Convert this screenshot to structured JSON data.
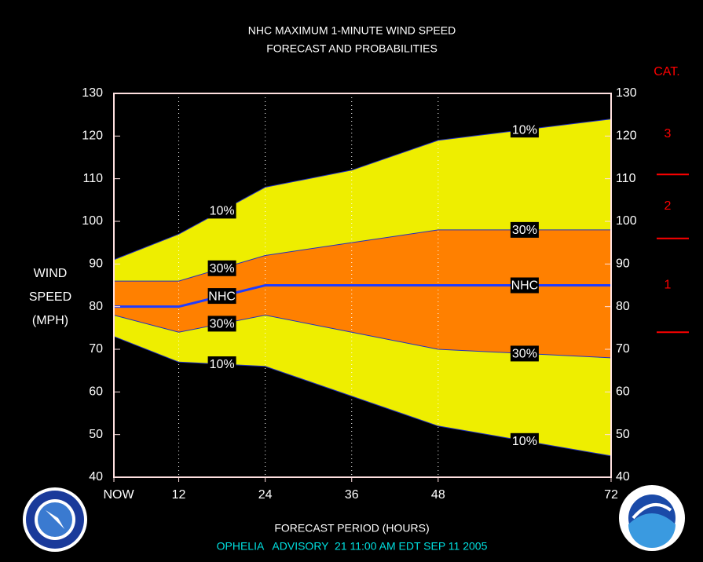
{
  "chart_data": {
    "type": "probability-band",
    "title": [
      "NHC MAXIMUM 1-MINUTE WIND SPEED",
      "FORECAST AND PROBABILITIES"
    ],
    "y_label": [
      "WIND",
      "SPEED",
      "(MPH)"
    ],
    "x_label": "FORECAST PERIOD (HOURS)",
    "footer": "OPHELIA   ADVISORY  21 11:00 AM EDT SEP 11 2005",
    "x": [
      3,
      12,
      24,
      36,
      48,
      72
    ],
    "xlim": [
      3,
      72
    ],
    "xticks": [
      {
        "value": 3,
        "label": "NOW"
      },
      12,
      24,
      36,
      48,
      72
    ],
    "ylim": [
      40,
      130
    ],
    "yticks": [
      40,
      50,
      60,
      70,
      80,
      90,
      100,
      110,
      120,
      130
    ],
    "grid": "x",
    "series": [
      {
        "name": "10%",
        "color": "#2030c0",
        "fill": "#eeee00",
        "values": [
          91,
          97,
          108,
          112,
          119,
          124
        ]
      },
      {
        "name": "30%",
        "color": "#2030c0",
        "fill": "#ff8000",
        "values": [
          86,
          86,
          92,
          95,
          98,
          98
        ]
      },
      {
        "name": "NHC",
        "color": "#1e3cff",
        "values": [
          80,
          80,
          85,
          85,
          85,
          85
        ]
      },
      {
        "name": "30%",
        "color": "#2030c0",
        "values": [
          78,
          74,
          78,
          74,
          70,
          68
        ]
      },
      {
        "name": "10%",
        "color": "#2030c0",
        "values": [
          73,
          67,
          66,
          59,
          52,
          45
        ]
      }
    ],
    "category_scale": {
      "title": "CAT.",
      "labels": [
        "3",
        "2",
        "1"
      ],
      "thresholds": [
        111,
        96,
        74
      ],
      "color": "#ff0000"
    }
  }
}
